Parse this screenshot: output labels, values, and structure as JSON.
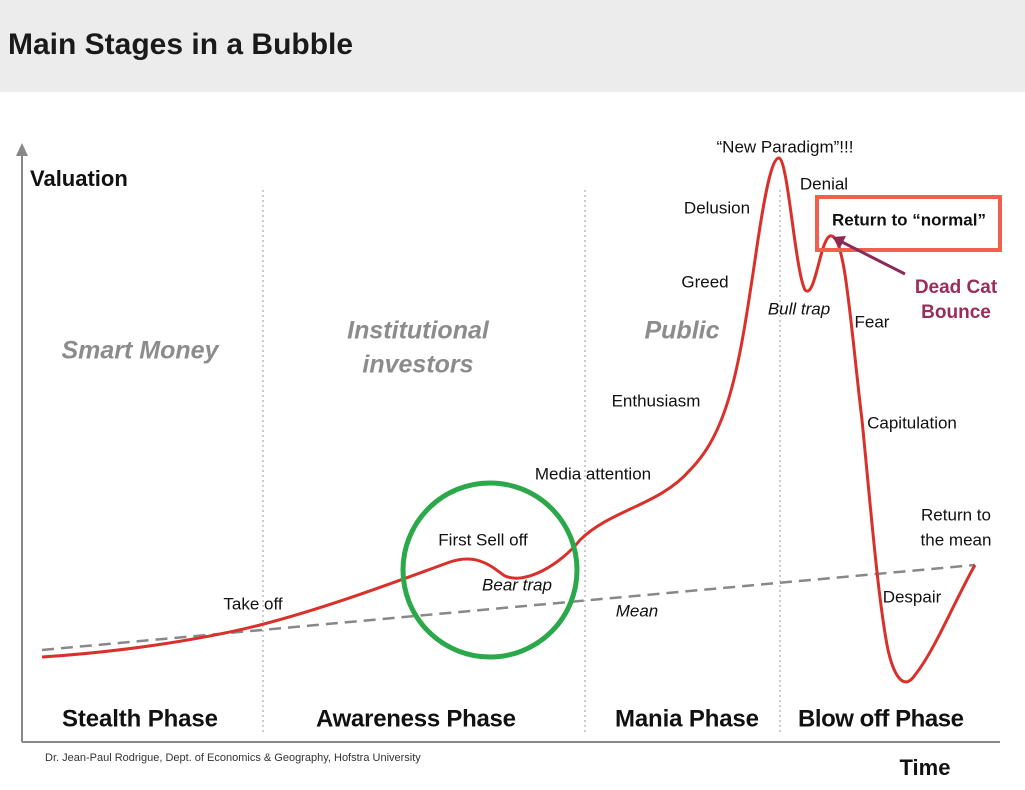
{
  "header": {
    "title": "Main Stages in a Bubble"
  },
  "diagram": {
    "y_axis_label": "Valuation",
    "x_axis_label": "Time",
    "groups": [
      {
        "lines": [
          "Smart Money"
        ]
      },
      {
        "lines": [
          "Institutional",
          "investors"
        ]
      },
      {
        "lines": [
          "Public"
        ]
      }
    ],
    "phases": [
      "Stealth Phase",
      "Awareness Phase",
      "Mania Phase",
      "Blow off Phase"
    ],
    "annotations": [
      {
        "lines": [
          "Take off"
        ]
      },
      {
        "lines": [
          "First Sell off"
        ]
      },
      {
        "lines": [
          "Bear trap"
        ]
      },
      {
        "lines": [
          "Mean"
        ]
      },
      {
        "lines": [
          "Media attention"
        ]
      },
      {
        "lines": [
          "Enthusiasm"
        ]
      },
      {
        "lines": [
          "Greed"
        ]
      },
      {
        "lines": [
          "Delusion"
        ]
      },
      {
        "lines": [
          "“New Paradigm”!!!"
        ]
      },
      {
        "lines": [
          "Denial"
        ]
      },
      {
        "lines": [
          "Bull trap"
        ]
      },
      {
        "lines": [
          "Fear"
        ]
      },
      {
        "lines": [
          "Capitulation"
        ]
      },
      {
        "lines": [
          "Return to",
          "the mean"
        ]
      },
      {
        "lines": [
          "Despair"
        ]
      }
    ],
    "callout": {
      "box": "Return to “normal”",
      "lines": [
        "Dead Cat",
        "Bounce"
      ]
    }
  },
  "footer": {
    "credit": "Dr. Jean-Paul Rodrigue, Dept. of Economics & Geography, Hofstra University"
  }
}
